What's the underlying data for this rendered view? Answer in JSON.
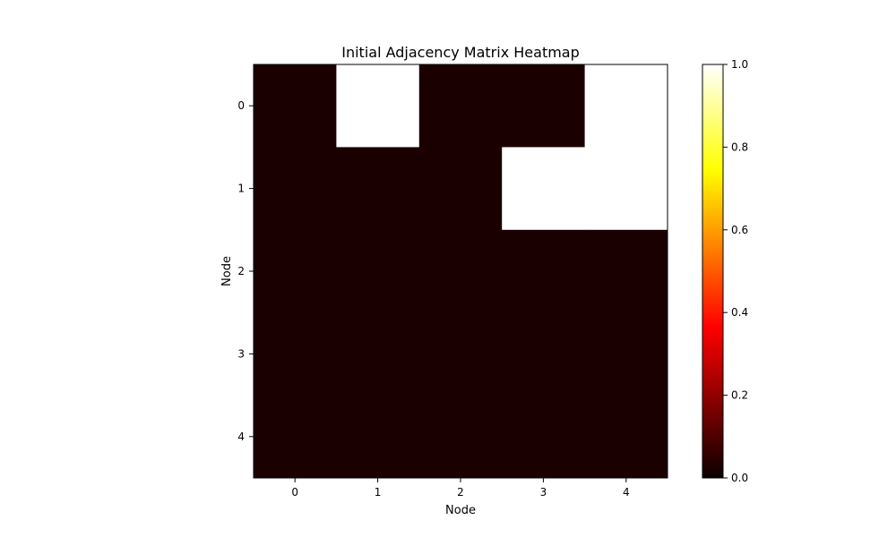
{
  "chart_data": {
    "type": "heatmap",
    "title": "Initial Adjacency Matrix Heatmap",
    "xlabel": "Node",
    "ylabel": "Node",
    "x_categories": [
      "0",
      "1",
      "2",
      "3",
      "4"
    ],
    "y_categories": [
      "0",
      "1",
      "2",
      "3",
      "4"
    ],
    "matrix": [
      [
        0,
        1,
        0,
        0,
        1
      ],
      [
        0,
        0,
        0,
        1,
        1
      ],
      [
        0,
        0,
        0,
        0,
        0
      ],
      [
        0,
        0,
        0,
        0,
        0
      ],
      [
        0,
        0,
        0,
        0,
        0
      ]
    ],
    "colormap": "hot",
    "colorbar": {
      "range": [
        0.0,
        1.0
      ],
      "ticks": [
        "0.0",
        "0.2",
        "0.4",
        "0.6",
        "0.8",
        "1.0"
      ]
    },
    "grid": false
  }
}
